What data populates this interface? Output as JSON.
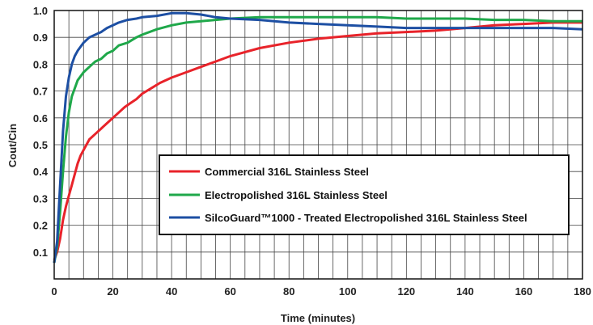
{
  "chart_data": {
    "type": "line",
    "title": "",
    "xlabel": "Time (minutes)",
    "ylabel": "Cout/Cin",
    "xlim": [
      0,
      180
    ],
    "ylim": [
      0,
      1.0
    ],
    "x_ticks": [
      "0",
      "20",
      "40",
      "60",
      "80",
      "100",
      "120",
      "140",
      "160",
      "180"
    ],
    "y_ticks": [
      "0.1",
      "0.2",
      "0.3",
      "0.4",
      "0.5",
      "0.6",
      "0.7",
      "0.8",
      "0.9",
      "1.0"
    ],
    "grid": true,
    "legend_position": "center-right",
    "series": [
      {
        "name": "Commercial 316L Stainless Steel",
        "color": "#e8232a",
        "x": [
          0,
          1,
          2,
          3,
          4,
          5,
          6,
          7,
          8,
          9,
          10,
          12,
          14,
          16,
          18,
          20,
          22,
          24,
          26,
          28,
          30,
          33,
          36,
          40,
          45,
          50,
          55,
          60,
          70,
          80,
          90,
          100,
          110,
          120,
          130,
          140,
          150,
          160,
          170,
          180
        ],
        "y": [
          0.07,
          0.1,
          0.15,
          0.22,
          0.27,
          0.31,
          0.35,
          0.39,
          0.43,
          0.46,
          0.48,
          0.52,
          0.54,
          0.56,
          0.58,
          0.6,
          0.62,
          0.64,
          0.655,
          0.67,
          0.69,
          0.71,
          0.73,
          0.75,
          0.77,
          0.79,
          0.81,
          0.83,
          0.86,
          0.88,
          0.895,
          0.905,
          0.915,
          0.92,
          0.925,
          0.935,
          0.945,
          0.95,
          0.955,
          0.955
        ]
      },
      {
        "name": "Electropolished 316L Stainless Steel",
        "color": "#1fa84a",
        "x": [
          0,
          1,
          2,
          3,
          4,
          5,
          6,
          7,
          8,
          10,
          12,
          14,
          16,
          18,
          20,
          22,
          25,
          28,
          30,
          35,
          40,
          45,
          50,
          55,
          60,
          70,
          80,
          90,
          100,
          110,
          120,
          130,
          140,
          150,
          160,
          170,
          180
        ],
        "y": [
          0.06,
          0.12,
          0.25,
          0.4,
          0.53,
          0.62,
          0.68,
          0.71,
          0.74,
          0.77,
          0.79,
          0.81,
          0.82,
          0.84,
          0.85,
          0.87,
          0.88,
          0.9,
          0.91,
          0.93,
          0.945,
          0.955,
          0.96,
          0.965,
          0.97,
          0.975,
          0.975,
          0.975,
          0.975,
          0.975,
          0.97,
          0.97,
          0.97,
          0.965,
          0.965,
          0.96,
          0.96
        ]
      },
      {
        "name": "SilcoGuard™1000 - Treated Electropolished 316L Stainless Steel",
        "color": "#1d4fa3",
        "x": [
          0,
          1,
          2,
          3,
          4,
          5,
          6,
          7,
          8,
          10,
          12,
          14,
          16,
          18,
          20,
          22,
          25,
          28,
          30,
          35,
          40,
          45,
          50,
          55,
          60,
          70,
          80,
          90,
          100,
          110,
          120,
          130,
          140,
          150,
          160,
          170,
          180
        ],
        "y": [
          0.06,
          0.14,
          0.35,
          0.55,
          0.68,
          0.75,
          0.8,
          0.83,
          0.85,
          0.88,
          0.9,
          0.91,
          0.92,
          0.935,
          0.945,
          0.955,
          0.965,
          0.97,
          0.975,
          0.98,
          0.99,
          0.99,
          0.985,
          0.975,
          0.97,
          0.965,
          0.955,
          0.95,
          0.945,
          0.94,
          0.935,
          0.935,
          0.935,
          0.935,
          0.935,
          0.935,
          0.93
        ]
      }
    ]
  }
}
